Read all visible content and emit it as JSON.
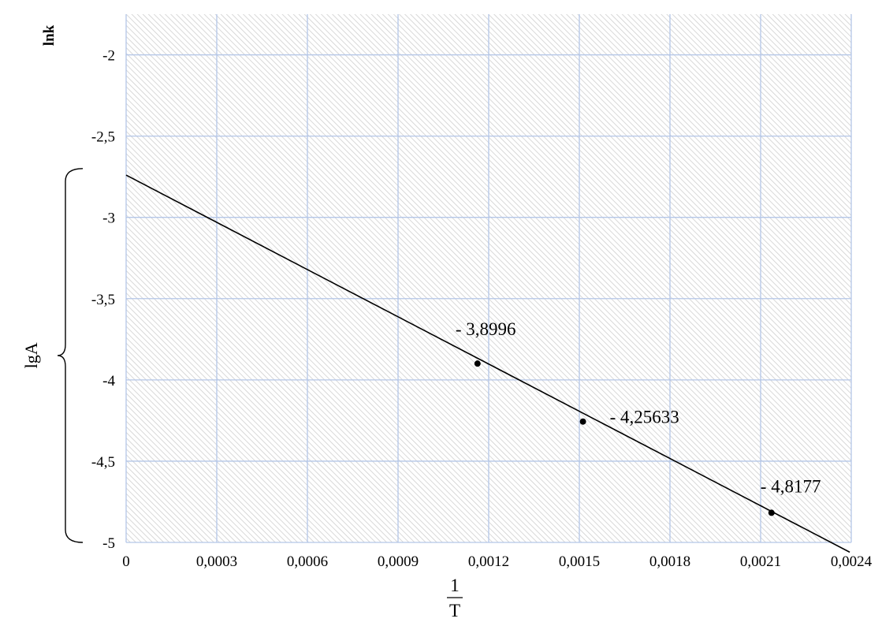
{
  "chart_data": {
    "type": "line",
    "xlabel": {
      "numerator": "1",
      "denominator": "T"
    },
    "ylabel": "lnk",
    "side_label": "lgA",
    "xlim": [
      0,
      0.0024
    ],
    "ylim": [
      -5,
      -1.75
    ],
    "x_ticks": [
      0,
      0.0003,
      0.0006,
      0.0009,
      0.0012,
      0.0015,
      0.0018,
      0.0021,
      0.0024
    ],
    "x_tick_labels": [
      "0",
      "0,0003",
      "0,0006",
      "0,0009",
      "0,0012",
      "0,0015",
      "0,0018",
      "0,0021",
      "0,0024"
    ],
    "y_ticks": [
      -2,
      -2.5,
      -3,
      -3.5,
      -4,
      -4.5,
      -5
    ],
    "y_tick_labels": [
      "-2",
      "-2,5",
      "-3",
      "-3,5",
      "-4",
      "-4,5",
      "-5"
    ],
    "grid": true,
    "trend_line": {
      "x": [
        0,
        0.002395
      ],
      "y": [
        -2.74,
        -5.06
      ]
    },
    "points": [
      {
        "x": 0.001163,
        "y": -3.8996,
        "label": "- 3,8996"
      },
      {
        "x": 0.001512,
        "y": -4.25633,
        "label": "- 4,25633"
      },
      {
        "x": 0.002136,
        "y": -4.8177,
        "label": "- 4,8177"
      }
    ],
    "side_bracket_range": [
      -2.7,
      -5
    ]
  }
}
